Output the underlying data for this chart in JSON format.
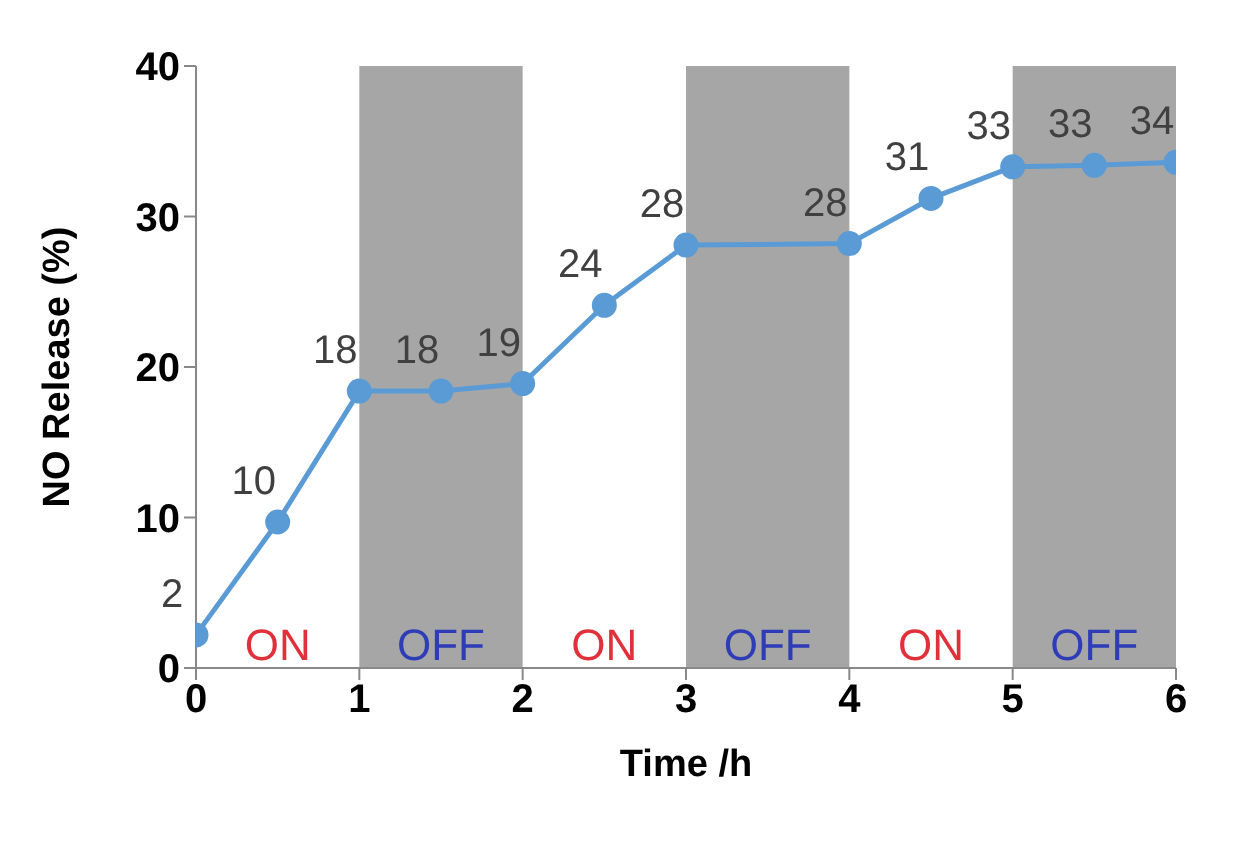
{
  "chart_data": {
    "type": "line",
    "xlabel": "Time /h",
    "ylabel": "NO Release (%)",
    "x": [
      0,
      0.5,
      1,
      1.5,
      2,
      2.5,
      3,
      4,
      4.5,
      5,
      5.5,
      6
    ],
    "series": [
      {
        "color": "#5b9bd5",
        "values": [
          2.2,
          9.7,
          18.4,
          18.4,
          18.9,
          24.1,
          28.1,
          28.2,
          31.2,
          33.3,
          33.4,
          33.6
        ],
        "value_labels": [
          "2",
          "10",
          "18",
          "18",
          "19",
          "24",
          "28",
          "28",
          "31",
          "33",
          "33",
          "34"
        ]
      }
    ],
    "xlim": [
      0,
      6
    ],
    "xticks": [
      0,
      1,
      2,
      3,
      4,
      5,
      6
    ],
    "ylim": [
      0,
      40
    ],
    "yticks": [
      0,
      10,
      20,
      30,
      40
    ],
    "annotations": [
      "ON",
      "ON",
      "ON"
    ],
    "bands": [
      {
        "axis": "x",
        "from": 1,
        "to": 2,
        "label": "OFF",
        "color": "#a6a6a6"
      },
      {
        "axis": "x",
        "from": 3,
        "to": 4,
        "label": "OFF",
        "color": "#a6a6a6"
      },
      {
        "axis": "x",
        "from": 5,
        "to": 6,
        "label": "OFF",
        "color": "#a6a6a6"
      }
    ],
    "marker": "circle",
    "line_style": "solid",
    "grid": false,
    "legend": false
  }
}
